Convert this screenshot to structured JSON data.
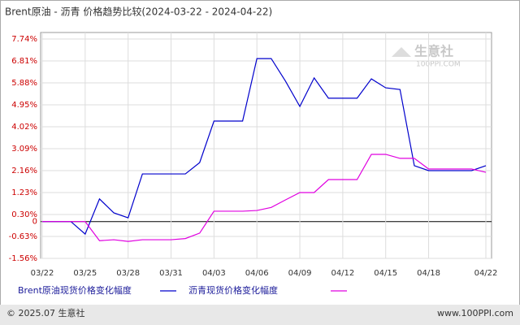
{
  "chart_data": {
    "type": "line",
    "title": "Brent原油 - 沥青 价格趋势比较(2024-03-22 - 2024-04-22)",
    "categories": [
      "03/22",
      null,
      null,
      "03/25",
      null,
      null,
      "03/28",
      null,
      null,
      "03/31",
      null,
      null,
      "04/03",
      null,
      null,
      "04/06",
      null,
      null,
      "04/09",
      null,
      null,
      "04/12",
      null,
      null,
      "04/15",
      null,
      null,
      "04/18",
      null,
      null,
      null,
      "04/22"
    ],
    "series": [
      {
        "name": "Brent原油现货价格变化幅度",
        "color": "#0000cc",
        "values": [
          0,
          0,
          0,
          -0.53,
          0.96,
          0.37,
          0.16,
          2.02,
          2.02,
          2.02,
          2.02,
          2.5,
          4.26,
          4.26,
          4.26,
          6.91,
          6.91,
          5.95,
          4.88,
          6.09,
          5.23,
          5.23,
          5.23,
          6.05,
          5.67,
          5.6,
          2.37,
          2.16,
          2.16,
          2.16,
          2.16,
          2.37
        ]
      },
      {
        "name": "沥青现货价格变化幅度",
        "color": "#e000e0",
        "values": [
          0,
          0,
          0,
          0,
          -0.81,
          -0.77,
          -0.84,
          -0.77,
          -0.77,
          -0.77,
          -0.72,
          -0.49,
          0.44,
          0.44,
          0.44,
          0.47,
          0.6,
          0.92,
          1.23,
          1.23,
          1.78,
          1.78,
          1.78,
          2.85,
          2.85,
          2.68,
          2.68,
          2.23,
          2.23,
          2.23,
          2.23,
          2.09
        ]
      }
    ],
    "ylim": [
      -1.56,
      7.74
    ],
    "yticks": [
      {
        "value": 7.74,
        "label": "7.74%"
      },
      {
        "value": 6.81,
        "label": "6.81%"
      },
      {
        "value": 5.88,
        "label": "5.88%"
      },
      {
        "value": 4.95,
        "label": "4.95%"
      },
      {
        "value": 4.02,
        "label": "4.02%"
      },
      {
        "value": 3.09,
        "label": "3.09%"
      },
      {
        "value": 2.16,
        "label": "2.16%"
      },
      {
        "value": 1.23,
        "label": "1.23%"
      },
      {
        "value": 0.3,
        "label": "0.30%"
      },
      {
        "value": 0,
        "label": "0"
      },
      {
        "value": -0.63,
        "label": "-0.63%"
      },
      {
        "value": -1.56,
        "label": "-1.56%"
      }
    ],
    "grid": true,
    "watermark": {
      "name": "生意社",
      "site": "100PPI.COM"
    },
    "footer": {
      "left": "© 2025.07 生意社",
      "right": "www.100PPI.com"
    }
  }
}
